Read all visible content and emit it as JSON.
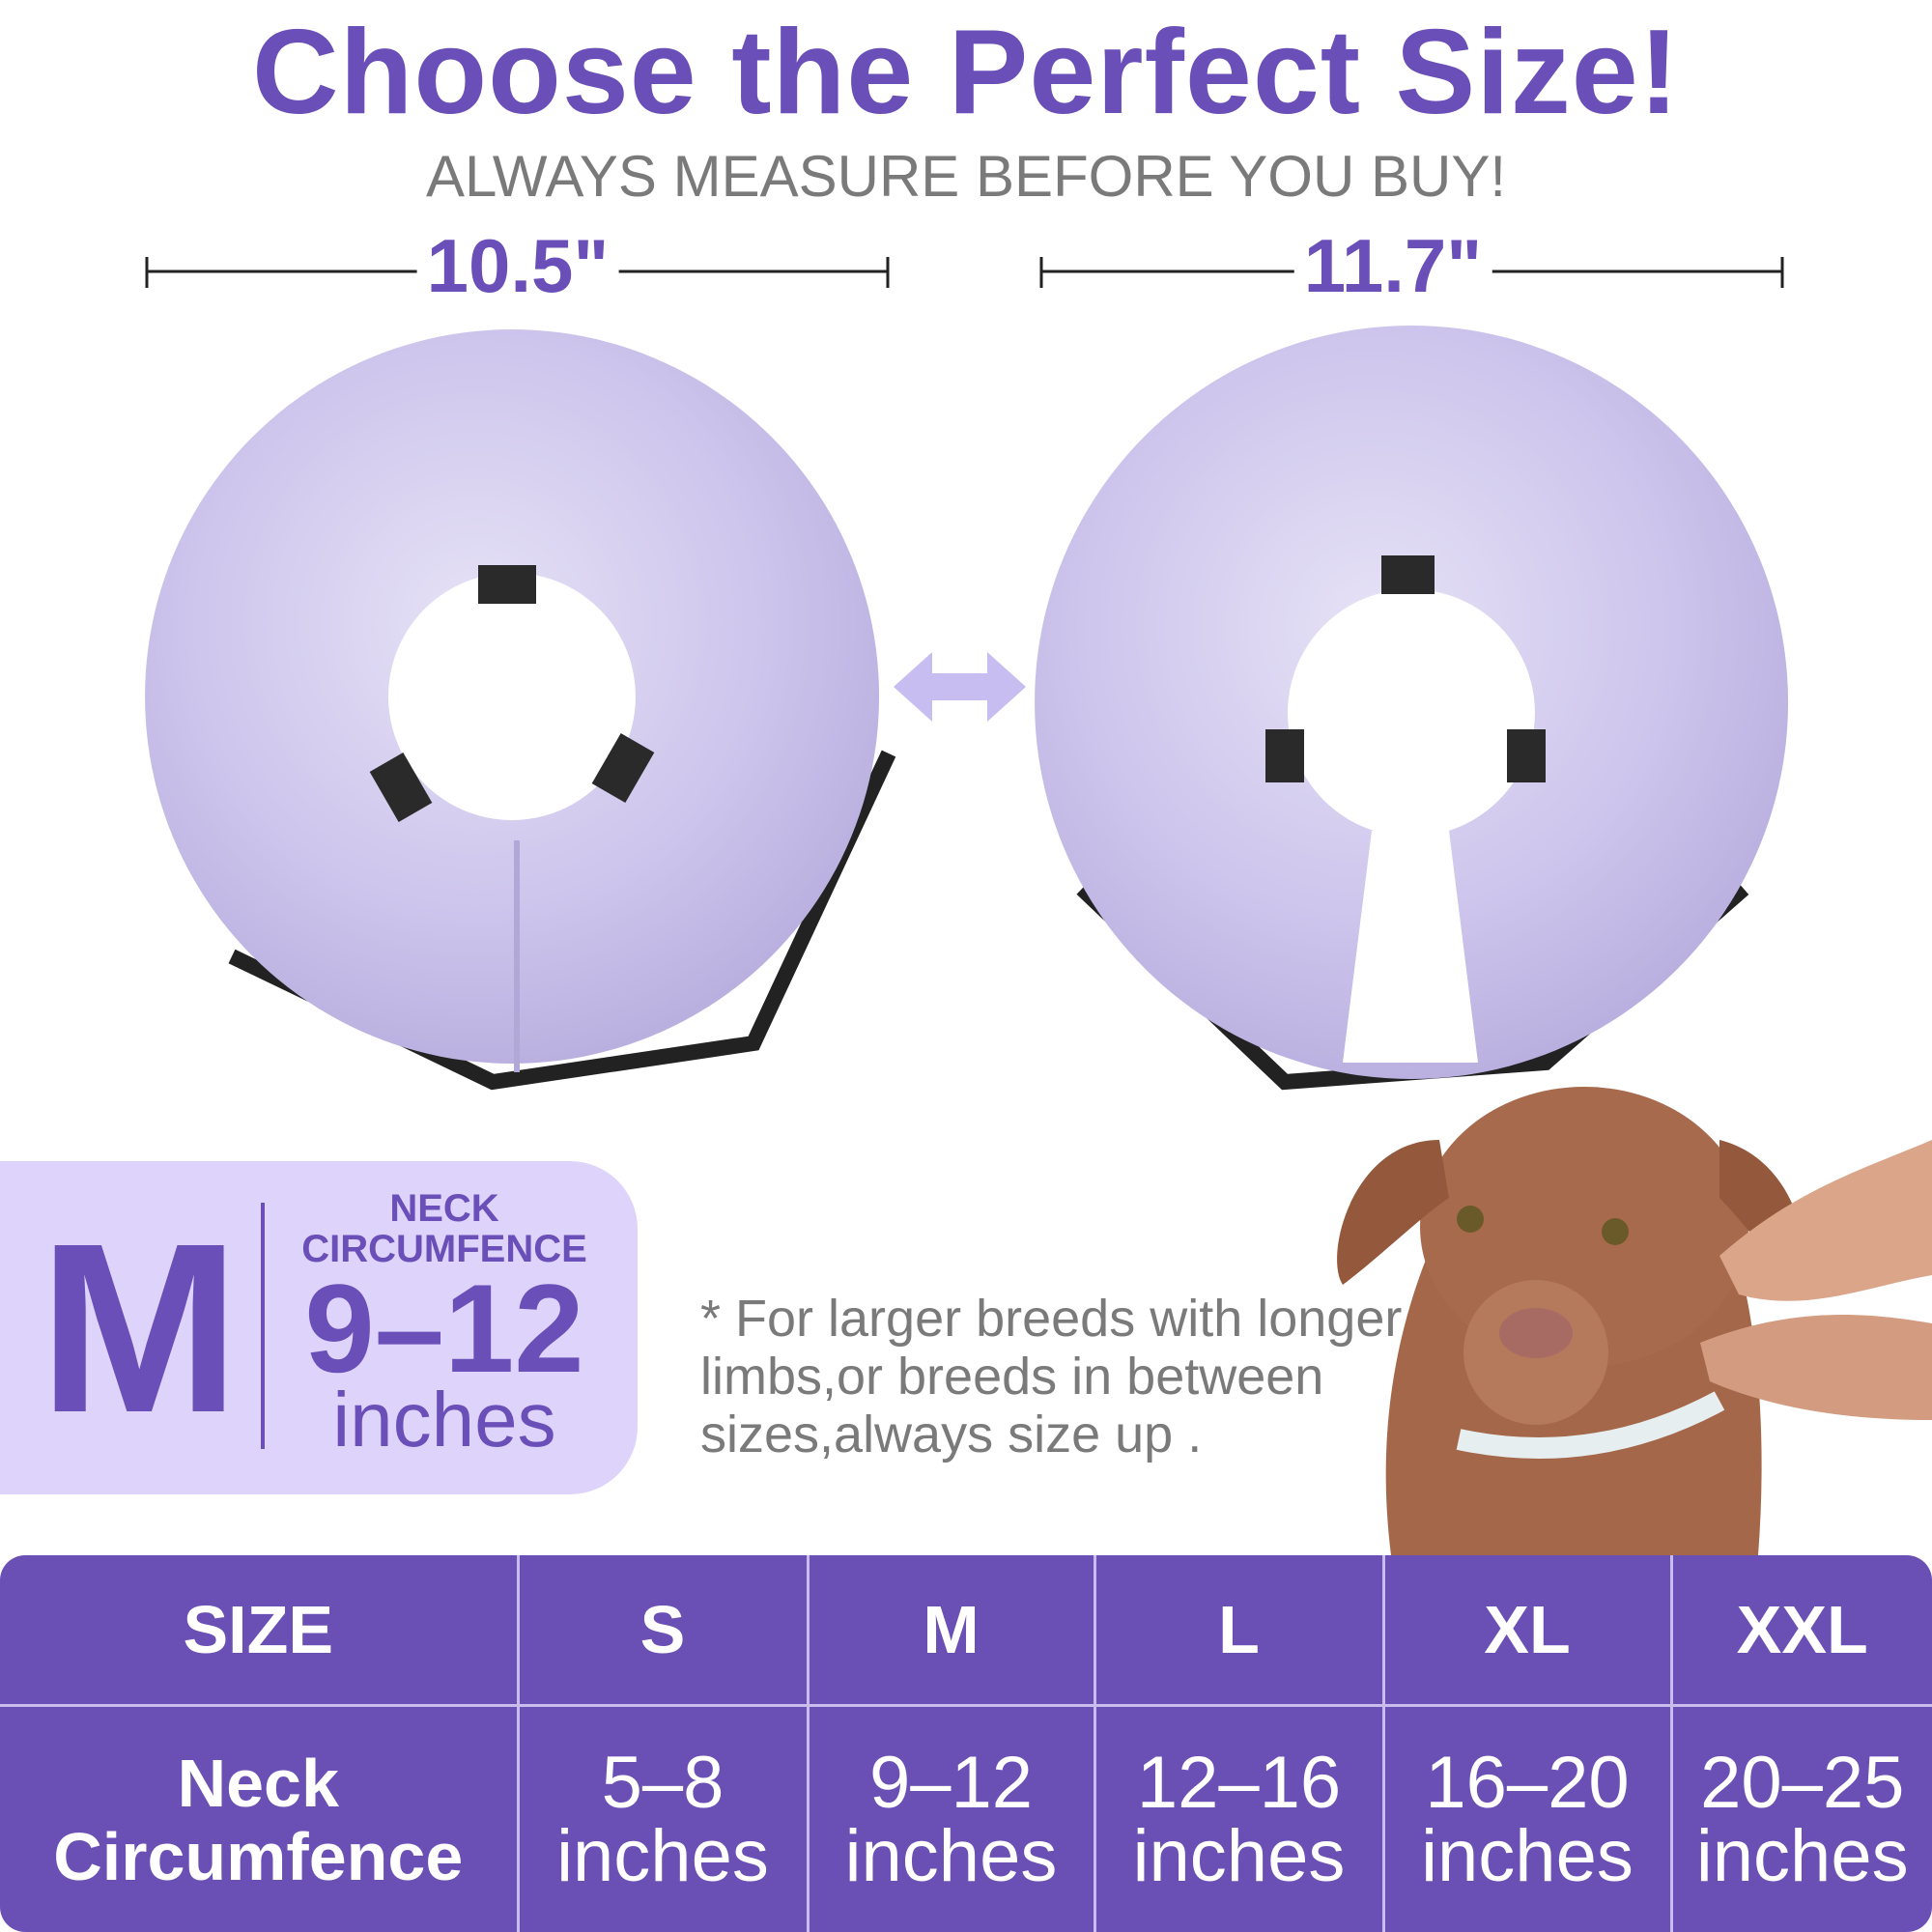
{
  "header": {
    "title": "Choose the Perfect Size!",
    "subtitle": "ALWAYS MEASURE BEFORE YOU BUY!"
  },
  "measurements": [
    "10.5\"",
    "11.7\""
  ],
  "badge": {
    "size": "M",
    "label": "NECK\nCIRCUMFENCE",
    "range": "9–12",
    "unit": "inches"
  },
  "note": "* For larger breeds with longer limbs,or breeds in between sizes,always size up .",
  "table": {
    "header": [
      "SIZE",
      "S",
      "M",
      "L",
      "XL",
      "XXL"
    ],
    "rows": [
      [
        "Neck Circumfence",
        "5–8 inches",
        "9–12 inches",
        "12–16 inches",
        "16–20 inches",
        "20–25 inches"
      ]
    ]
  }
}
